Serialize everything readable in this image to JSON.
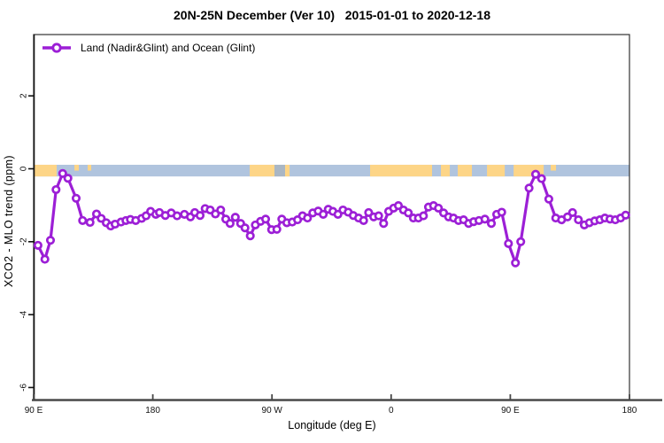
{
  "title": "20N-25N December (Ver 10)   2015-01-01 to 2020-12-18",
  "legend": {
    "label": "Land (Nadir&Glint) and Ocean (Glint)"
  },
  "colors": {
    "series": "#9c1fd6",
    "ocean": "#b0c4de",
    "land": "#fdd587",
    "muted": "#a9b6c4",
    "axis_dark": "#474747",
    "box": "#333333",
    "text": "#111111"
  },
  "chart_data": {
    "type": "line",
    "title": "20N-25N December (Ver 10)   2015-01-01 to 2020-12-18",
    "xlabel": "Longitude (deg E)",
    "ylabel": "XCO2 - MLO trend (ppm)",
    "xlim": [
      90,
      540
    ],
    "ylim": [
      -6.3,
      3.7
    ],
    "grid": false,
    "legend_position": "top-left-inside",
    "x_ticks": [
      {
        "lon": 90,
        "label": "90 E"
      },
      {
        "lon": 180,
        "label": "180"
      },
      {
        "lon": 270,
        "label": "90 W"
      },
      {
        "lon": 360,
        "label": "0"
      },
      {
        "lon": 450,
        "label": "90 E"
      },
      {
        "lon": 540,
        "label": "180"
      }
    ],
    "y_ticks": [
      {
        "val": 2,
        "label": "2"
      },
      {
        "val": 0,
        "label": "0"
      },
      {
        "val": -2,
        "label": "-2"
      },
      {
        "val": -4,
        "label": "-4"
      },
      {
        "val": -6,
        "label": "-6"
      }
    ],
    "map_band": {
      "note": "20N-25N latitude strip of world map drawn along y=0; ocean blue with land segments",
      "val_top": 0.11,
      "val_bottom": -0.21,
      "segments": [
        {
          "from": 90,
          "to": 107.4,
          "kind": "land"
        },
        {
          "from": 120.8,
          "to": 124.1,
          "kind": "land",
          "half": true
        },
        {
          "from": 130.8,
          "to": 133.5,
          "kind": "land",
          "half": true
        },
        {
          "from": 253.2,
          "to": 271.9,
          "kind": "land"
        },
        {
          "from": 271.9,
          "to": 279.9,
          "kind": "muted"
        },
        {
          "from": 279.9,
          "to": 283.3,
          "kind": "land"
        },
        {
          "from": 344.1,
          "to": 390.9,
          "kind": "land"
        },
        {
          "from": 397.6,
          "to": 404.3,
          "kind": "land"
        },
        {
          "from": 410.3,
          "to": 421.0,
          "kind": "land"
        },
        {
          "from": 432.4,
          "to": 445.8,
          "kind": "land"
        },
        {
          "from": 452.5,
          "to": 475.2,
          "kind": "land"
        },
        {
          "from": 480.5,
          "to": 484.5,
          "kind": "land",
          "half": true
        }
      ]
    },
    "series": [
      {
        "name": "Land (Nadir&Glint) and Ocean (Glint)",
        "marker": "open-circle",
        "x": [
          93.3,
          98.5,
          102.7,
          106.9,
          111.9,
          115.9,
          122.1,
          127.0,
          132.6,
          137.5,
          141.0,
          144.8,
          148.2,
          151.5,
          156.0,
          159.7,
          163.1,
          167.1,
          171.6,
          174.9,
          178.3,
          182.3,
          185.0,
          189.4,
          193.9,
          198.3,
          203.9,
          208.4,
          211.7,
          215.7,
          219.5,
          223.3,
          227.3,
          231.3,
          235.1,
          238.4,
          242.3,
          246.3,
          249.6,
          253.6,
          257.4,
          261.4,
          265.2,
          269.7,
          273.7,
          277.4,
          281.2,
          285.3,
          289.3,
          293.1,
          296.8,
          300.8,
          304.9,
          308.7,
          312.5,
          316.0,
          319.8,
          323.6,
          327.6,
          331.4,
          335.4,
          339.2,
          343.0,
          346.8,
          350.6,
          354.3,
          358.1,
          361.9,
          365.5,
          369.3,
          373.0,
          376.8,
          380.6,
          384.4,
          388.2,
          392.0,
          395.7,
          399.6,
          403.4,
          407.1,
          410.9,
          414.7,
          418.5,
          422.3,
          426.3,
          430.8,
          435.7,
          439.7,
          443.5,
          448.6,
          453.9,
          457.9,
          464.2,
          469.1,
          473.6,
          479.1,
          484.3,
          488.7,
          493.2,
          497.0,
          501.4,
          505.9,
          509.7,
          513.7,
          517.7,
          521.4,
          525.3,
          529.3,
          533.3,
          537.1
        ],
        "y": [
          -2.1,
          -2.48,
          -1.96,
          -0.57,
          -0.13,
          -0.26,
          -0.81,
          -1.42,
          -1.47,
          -1.24,
          -1.36,
          -1.48,
          -1.57,
          -1.52,
          -1.46,
          -1.42,
          -1.39,
          -1.42,
          -1.36,
          -1.29,
          -1.17,
          -1.25,
          -1.2,
          -1.28,
          -1.21,
          -1.29,
          -1.25,
          -1.32,
          -1.2,
          -1.28,
          -1.09,
          -1.13,
          -1.24,
          -1.13,
          -1.38,
          -1.5,
          -1.33,
          -1.5,
          -1.62,
          -1.84,
          -1.54,
          -1.44,
          -1.38,
          -1.67,
          -1.66,
          -1.38,
          -1.48,
          -1.46,
          -1.4,
          -1.29,
          -1.35,
          -1.21,
          -1.16,
          -1.25,
          -1.11,
          -1.17,
          -1.25,
          -1.13,
          -1.19,
          -1.28,
          -1.35,
          -1.42,
          -1.2,
          -1.32,
          -1.29,
          -1.5,
          -1.17,
          -1.08,
          -1.01,
          -1.13,
          -1.21,
          -1.35,
          -1.35,
          -1.29,
          -1.05,
          -1.01,
          -1.08,
          -1.21,
          -1.32,
          -1.35,
          -1.42,
          -1.4,
          -1.5,
          -1.45,
          -1.42,
          -1.38,
          -1.5,
          -1.25,
          -1.19,
          -2.05,
          -2.58,
          -2.0,
          -0.53,
          -0.15,
          -0.27,
          -0.83,
          -1.35,
          -1.4,
          -1.32,
          -1.2,
          -1.4,
          -1.54,
          -1.48,
          -1.43,
          -1.4,
          -1.35,
          -1.38,
          -1.4,
          -1.35,
          -1.27
        ]
      }
    ]
  }
}
